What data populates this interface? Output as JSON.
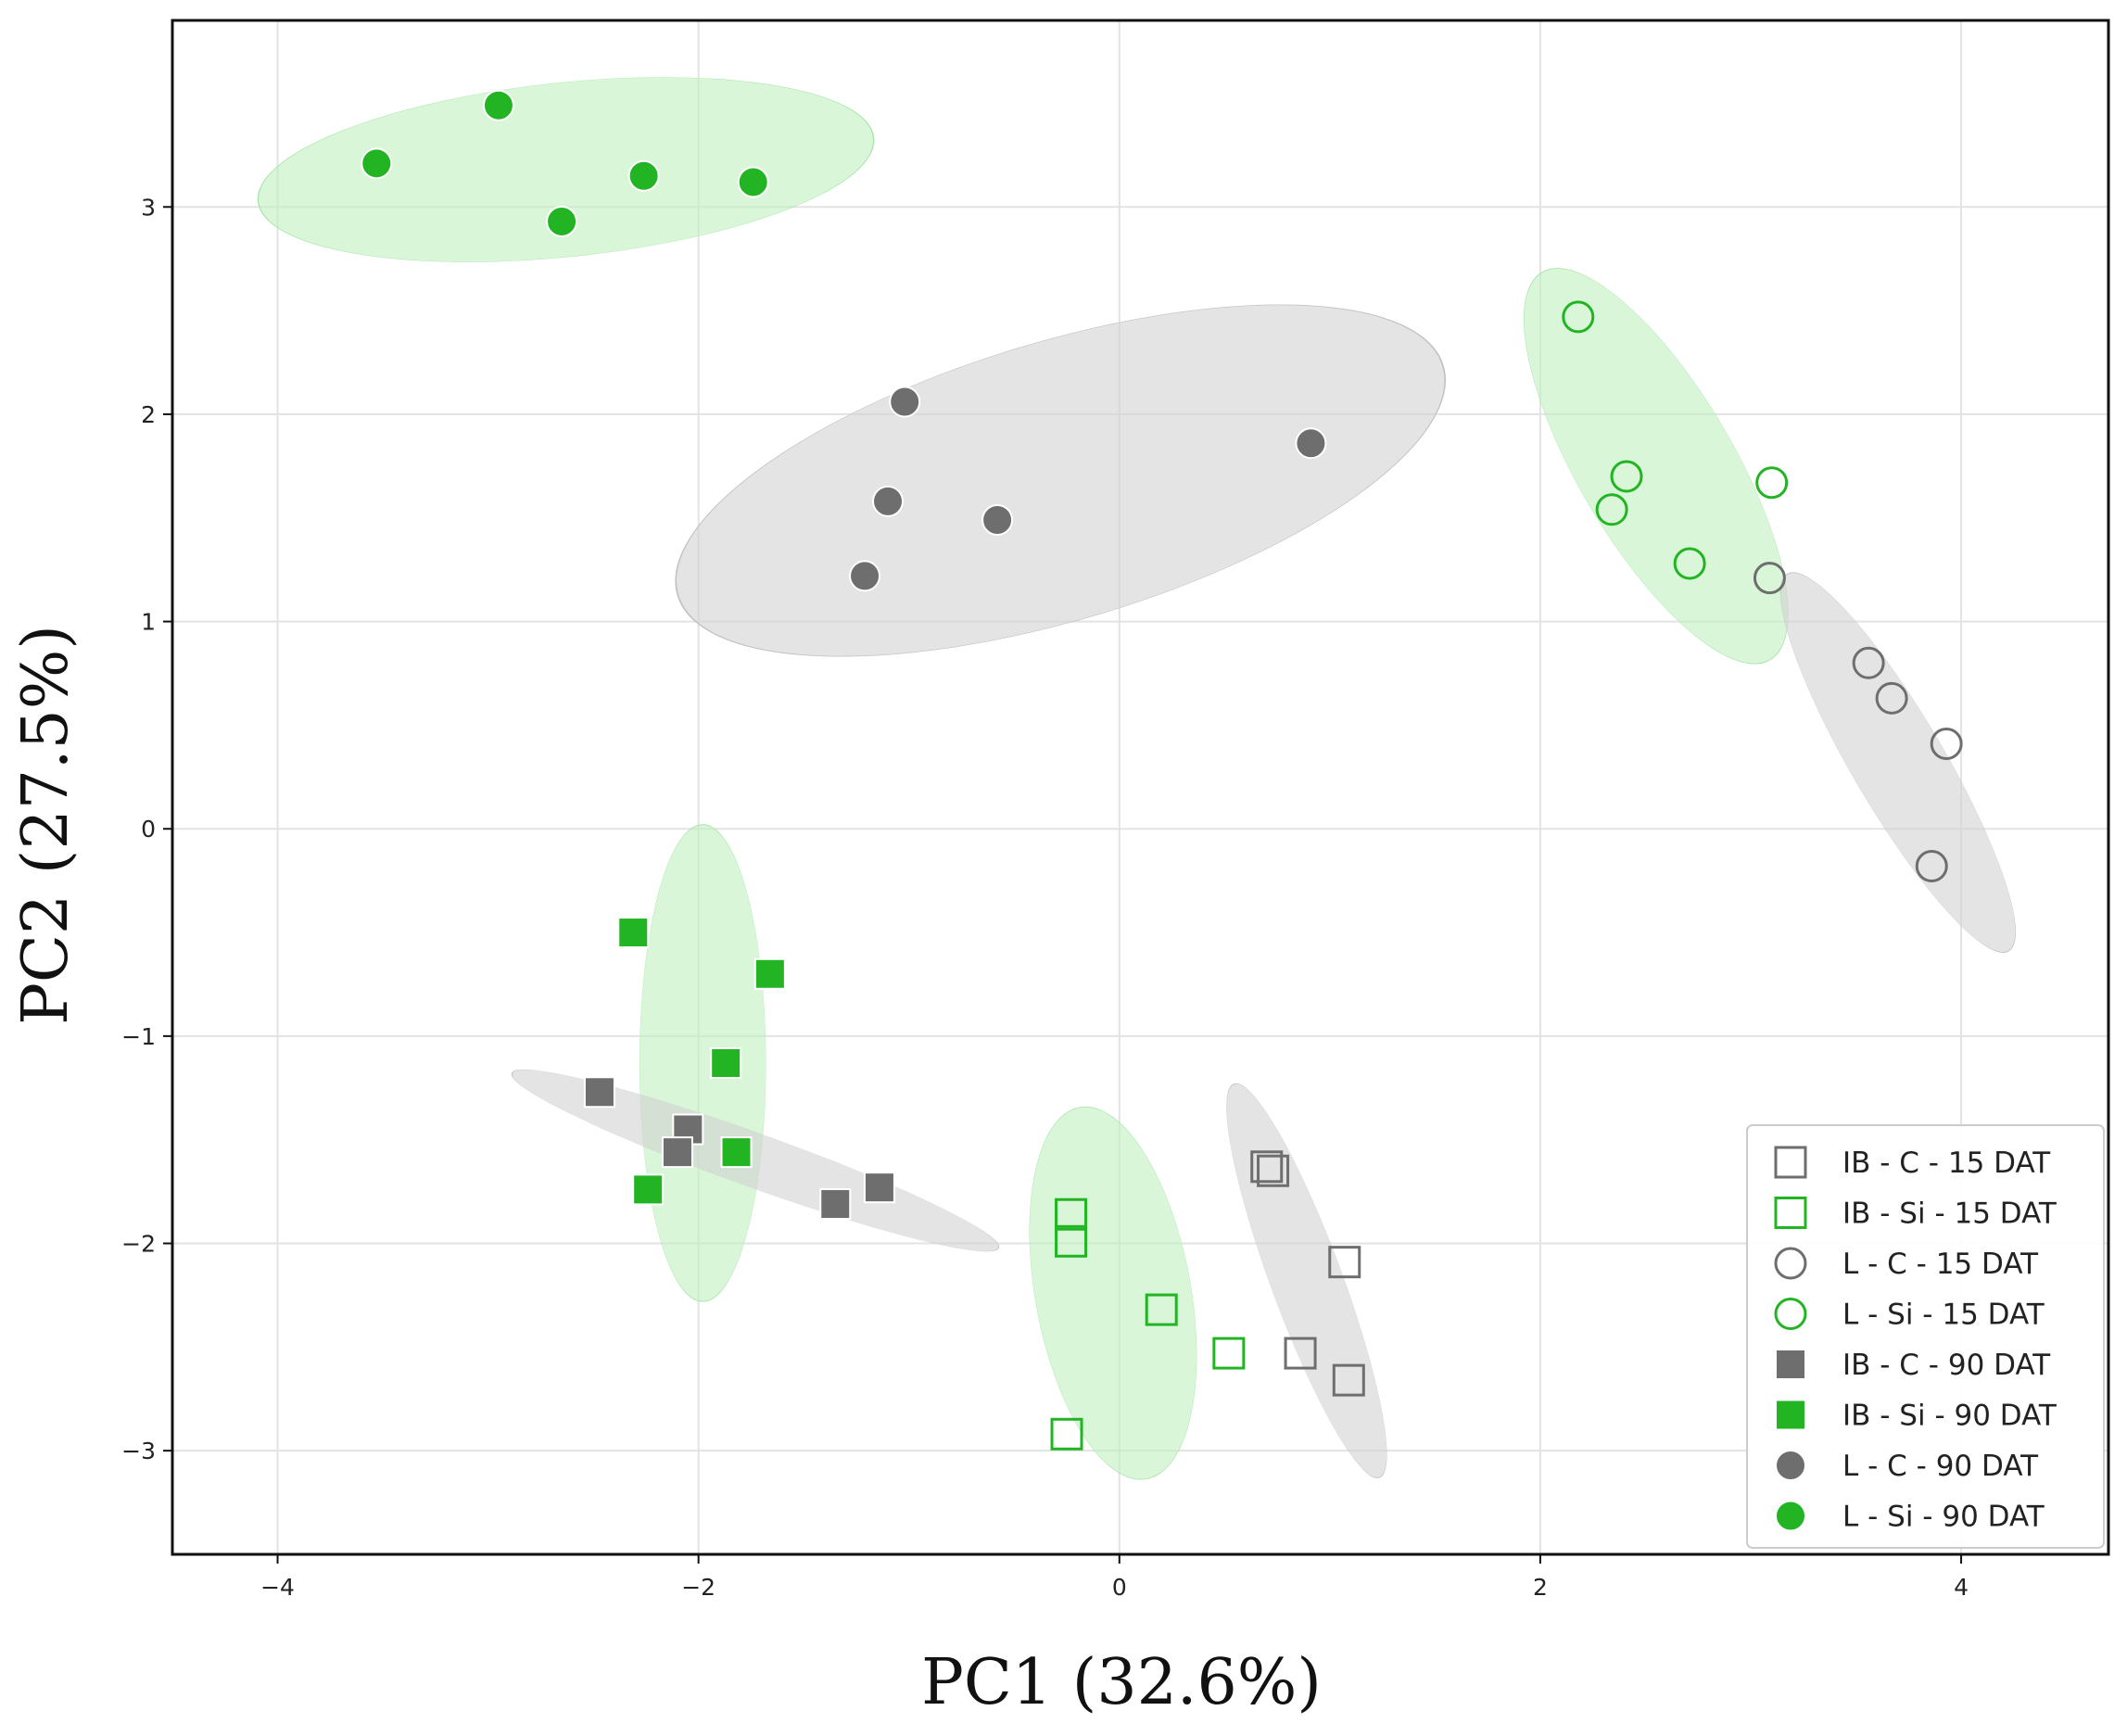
{
  "chart_data": {
    "type": "scatter",
    "title": "",
    "xlabel": "PC1 (32.6%)",
    "ylabel": "PC2 (27.5%)",
    "xlim": [
      -4.5,
      4.7
    ],
    "ylim": [
      -3.5,
      3.9
    ],
    "xticks": [
      -4,
      -2,
      0,
      2,
      4
    ],
    "yticks": [
      -3,
      -2,
      -1,
      0,
      1,
      2,
      3
    ],
    "xtick_labels": [
      "−4",
      "−2",
      "0",
      "2",
      "4"
    ],
    "ytick_labels": [
      "−3",
      "−2",
      "−1",
      "0",
      "1",
      "2",
      "3"
    ],
    "grid": true,
    "legend_position": "bottom-right",
    "colors": {
      "green": "#22b422",
      "gray": "#6e6e6e",
      "green_ellipse": "#bff0bf",
      "gray_ellipse": "#d2d2d2"
    },
    "series": [
      {
        "name": "IB - C - 15 DAT",
        "marker": "square",
        "filled": false,
        "color": "#6e6e6e",
        "points": [
          [
            0.7,
            -1.63
          ],
          [
            0.73,
            -1.65
          ],
          [
            1.07,
            -2.09
          ],
          [
            0.86,
            -2.53
          ],
          [
            1.09,
            -2.66
          ]
        ]
      },
      {
        "name": "IB - Si - 15 DAT",
        "marker": "square",
        "filled": false,
        "color": "#22b422",
        "points": [
          [
            -0.23,
            -1.86
          ],
          [
            -0.23,
            -1.99
          ],
          [
            0.2,
            -2.32
          ],
          [
            0.52,
            -2.53
          ],
          [
            -0.25,
            -2.92
          ]
        ]
      },
      {
        "name": "L - C - 15 DAT",
        "marker": "circle",
        "filled": false,
        "color": "#6e6e6e",
        "points": [
          [
            3.09,
            1.21
          ],
          [
            3.56,
            0.8
          ],
          [
            3.67,
            0.63
          ],
          [
            3.93,
            0.41
          ],
          [
            3.86,
            -0.18
          ]
        ]
      },
      {
        "name": "L - Si - 15 DAT",
        "marker": "circle",
        "filled": false,
        "color": "#22b422",
        "points": [
          [
            2.18,
            2.47
          ],
          [
            2.41,
            1.7
          ],
          [
            2.34,
            1.54
          ],
          [
            3.1,
            1.67
          ],
          [
            2.71,
            1.28
          ]
        ]
      },
      {
        "name": "IB - C - 90 DAT",
        "marker": "square",
        "filled": true,
        "color": "#6e6e6e",
        "points": [
          [
            -2.47,
            -1.27
          ],
          [
            -2.05,
            -1.45
          ],
          [
            -2.1,
            -1.56
          ],
          [
            -1.35,
            -1.81
          ],
          [
            -1.14,
            -1.73
          ]
        ]
      },
      {
        "name": "IB - Si - 90 DAT",
        "marker": "square",
        "filled": true,
        "color": "#22b422",
        "points": [
          [
            -2.31,
            -0.5
          ],
          [
            -1.66,
            -0.7
          ],
          [
            -1.87,
            -1.13
          ],
          [
            -1.82,
            -1.56
          ],
          [
            -2.24,
            -1.74
          ]
        ]
      },
      {
        "name": "L - C - 90 DAT",
        "marker": "circle",
        "filled": true,
        "color": "#6e6e6e",
        "points": [
          [
            -1.02,
            2.06
          ],
          [
            -1.1,
            1.58
          ],
          [
            -0.58,
            1.49
          ],
          [
            -1.21,
            1.22
          ],
          [
            0.91,
            1.86
          ]
        ]
      },
      {
        "name": "L - Si - 90 DAT",
        "marker": "circle",
        "filled": true,
        "color": "#22b422",
        "points": [
          [
            -2.95,
            3.49
          ],
          [
            -3.53,
            3.21
          ],
          [
            -2.26,
            3.15
          ],
          [
            -1.74,
            3.12
          ],
          [
            -2.65,
            2.93
          ]
        ]
      }
    ],
    "ellipses": [
      {
        "group": "L - Si - 90 DAT",
        "fill": "green",
        "center": [
          -2.63,
          3.18
        ],
        "radii": [
          1.47,
          0.42
        ],
        "angle_deg": 6
      },
      {
        "group": "L - C - 90 DAT",
        "fill": "gray",
        "center": [
          -0.28,
          1.68
        ],
        "radii": [
          1.9,
          0.67
        ],
        "angle_deg": 17
      },
      {
        "group": "L - Si - 15 DAT",
        "fill": "green",
        "center": [
          2.55,
          1.75
        ],
        "radii": [
          1.08,
          0.37
        ],
        "angle_deg": -60
      },
      {
        "group": "L - C - 15 DAT",
        "fill": "gray",
        "center": [
          3.7,
          0.32
        ],
        "radii": [
          1.05,
          0.22
        ],
        "angle_deg": -60
      },
      {
        "group": "IB - Si - 90 DAT",
        "fill": "green",
        "center": [
          -1.98,
          -1.13
        ],
        "radii": [
          1.15,
          0.3
        ],
        "angle_deg": 90
      },
      {
        "group": "IB - C - 90 DAT",
        "fill": "gray",
        "center": [
          -1.73,
          -1.6
        ],
        "radii": [
          1.23,
          0.13
        ],
        "angle_deg": -20
      },
      {
        "group": "IB - Si - 15 DAT",
        "fill": "green",
        "center": [
          -0.03,
          -2.24
        ],
        "radii": [
          0.91,
          0.37
        ],
        "angle_deg": -80
      },
      {
        "group": "IB - C - 15 DAT",
        "fill": "gray",
        "center": [
          0.89,
          -2.18
        ],
        "radii": [
          1.01,
          0.17
        ],
        "angle_deg": -70
      }
    ]
  }
}
